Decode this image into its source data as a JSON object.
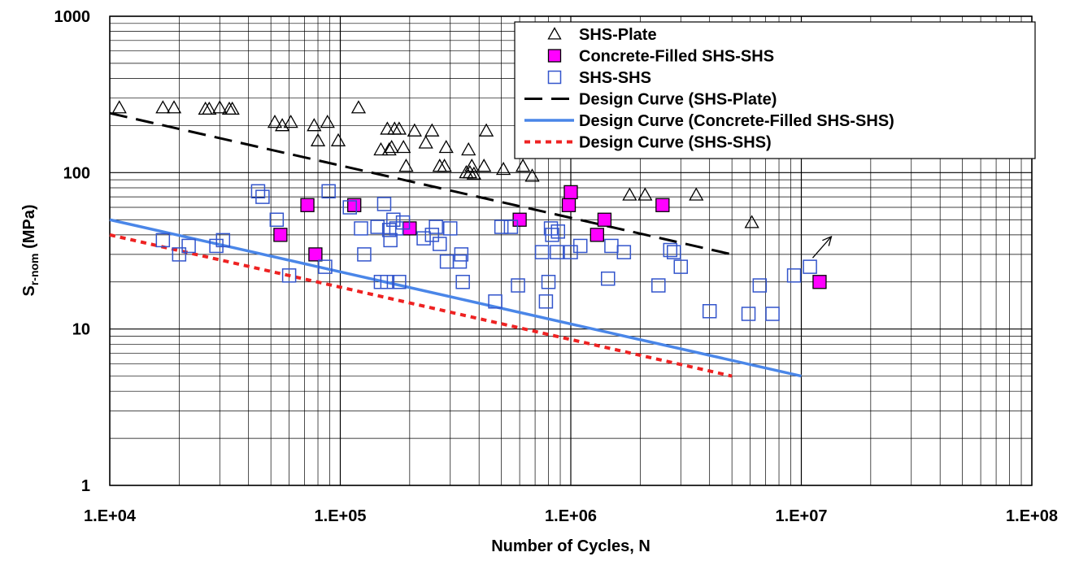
{
  "chart_data": {
    "type": "scatter",
    "xlabel": "Number of Cycles, N",
    "ylabel_main": "S",
    "ylabel_sub": "r-nom",
    "ylabel_suffix": " (MPa)",
    "x_scale": "log",
    "y_scale": "log",
    "xlim": [
      10000,
      100000000
    ],
    "ylim": [
      1,
      1000
    ],
    "x_tick_labels": [
      "1.E+04",
      "1.E+05",
      "1.E+06",
      "1.E+07",
      "1.E+08"
    ],
    "y_tick_labels": [
      "1",
      "10",
      "100",
      "1000"
    ],
    "grid": true,
    "legend_position": "top-right",
    "series": [
      {
        "name": "SHS-Plate",
        "marker": "triangle-open",
        "color": "#000000",
        "points": [
          [
            11000,
            260
          ],
          [
            17000,
            260
          ],
          [
            19000,
            260
          ],
          [
            26000,
            255
          ],
          [
            27000,
            255
          ],
          [
            30000,
            260
          ],
          [
            33000,
            255
          ],
          [
            34000,
            255
          ],
          [
            52000,
            210
          ],
          [
            56000,
            200
          ],
          [
            61000,
            210
          ],
          [
            77000,
            200
          ],
          [
            80000,
            160
          ],
          [
            88000,
            210
          ],
          [
            98000,
            160
          ],
          [
            120000,
            260
          ],
          [
            150000,
            140
          ],
          [
            160000,
            190
          ],
          [
            163000,
            140
          ],
          [
            167000,
            145
          ],
          [
            172000,
            190
          ],
          [
            180000,
            190
          ],
          [
            188000,
            145
          ],
          [
            193000,
            110
          ],
          [
            210000,
            185
          ],
          [
            235000,
            155
          ],
          [
            250000,
            185
          ],
          [
            270000,
            110
          ],
          [
            283000,
            110
          ],
          [
            288000,
            145
          ],
          [
            352000,
            100
          ],
          [
            360000,
            140
          ],
          [
            365000,
            100
          ],
          [
            372000,
            110
          ],
          [
            380000,
            98
          ],
          [
            420000,
            110
          ],
          [
            430000,
            185
          ],
          [
            510000,
            105
          ],
          [
            620000,
            110
          ],
          [
            680000,
            95
          ],
          [
            1800000,
            72
          ],
          [
            2100000,
            72
          ],
          [
            3500000,
            72
          ],
          [
            6100000,
            48
          ]
        ]
      },
      {
        "name": "Concrete-Filled SHS-SHS",
        "marker": "square-filled",
        "color": "#ff00ff",
        "points": [
          [
            55000,
            40
          ],
          [
            72000,
            62
          ],
          [
            78000,
            30
          ],
          [
            115000,
            62
          ],
          [
            200000,
            44
          ],
          [
            600000,
            50
          ],
          [
            980000,
            62
          ],
          [
            1000000,
            75
          ],
          [
            1300000,
            40
          ],
          [
            1400000,
            50
          ],
          [
            2500000,
            62
          ],
          [
            12000000,
            20
          ]
        ]
      },
      {
        "name": "SHS-SHS",
        "marker": "square-open",
        "color": "#3355cc",
        "points": [
          [
            17000,
            37
          ],
          [
            20000,
            30
          ],
          [
            22000,
            34
          ],
          [
            29000,
            34
          ],
          [
            31000,
            37
          ],
          [
            44000,
            76
          ],
          [
            46000,
            70
          ],
          [
            53000,
            50
          ],
          [
            60000,
            22
          ],
          [
            86000,
            25
          ],
          [
            89000,
            76
          ],
          [
            110000,
            60
          ],
          [
            123000,
            44
          ],
          [
            127000,
            30
          ],
          [
            145000,
            45
          ],
          [
            150000,
            20
          ],
          [
            155000,
            63
          ],
          [
            160000,
            20
          ],
          [
            163000,
            43
          ],
          [
            165000,
            37
          ],
          [
            170000,
            50
          ],
          [
            175000,
            44
          ],
          [
            180000,
            20
          ],
          [
            187000,
            48
          ],
          [
            230000,
            38
          ],
          [
            250000,
            40
          ],
          [
            260000,
            45
          ],
          [
            270000,
            35
          ],
          [
            290000,
            27
          ],
          [
            300000,
            44
          ],
          [
            330000,
            27
          ],
          [
            335000,
            30
          ],
          [
            340000,
            20
          ],
          [
            470000,
            15
          ],
          [
            500000,
            45
          ],
          [
            550000,
            45
          ],
          [
            590000,
            19
          ],
          [
            750000,
            31
          ],
          [
            780000,
            15
          ],
          [
            800000,
            20
          ],
          [
            820000,
            44
          ],
          [
            830000,
            40
          ],
          [
            870000,
            31
          ],
          [
            880000,
            42
          ],
          [
            1000000,
            31
          ],
          [
            1100000,
            34
          ],
          [
            1450000,
            21
          ],
          [
            1500000,
            34
          ],
          [
            1700000,
            31
          ],
          [
            2400000,
            19
          ],
          [
            2700000,
            32
          ],
          [
            2800000,
            31
          ],
          [
            3000000,
            25
          ],
          [
            4000000,
            13
          ],
          [
            5900000,
            12.5
          ],
          [
            6600000,
            19
          ],
          [
            7500000,
            12.5
          ],
          [
            9300000,
            22
          ],
          [
            10900000,
            25
          ]
        ]
      }
    ],
    "curves": [
      {
        "name": "Design Curve (SHS-Plate)",
        "style": "long-dash",
        "color": "#000000",
        "points": [
          [
            10000,
            240
          ],
          [
            5000000,
            30
          ]
        ]
      },
      {
        "name": "Design Curve (Concrete-Filled SHS-SHS)",
        "style": "solid",
        "color": "#4a86e8",
        "points": [
          [
            10000,
            50
          ],
          [
            10000000,
            5
          ]
        ]
      },
      {
        "name": "Design Curve (SHS-SHS)",
        "style": "dotted",
        "color": "#ee2222",
        "points": [
          [
            10000,
            40
          ],
          [
            5000000,
            5
          ]
        ]
      }
    ],
    "annotations": [
      {
        "type": "arrow",
        "from": [
          11200000,
          28.5
        ],
        "to": [
          13500000,
          39
        ]
      }
    ]
  }
}
